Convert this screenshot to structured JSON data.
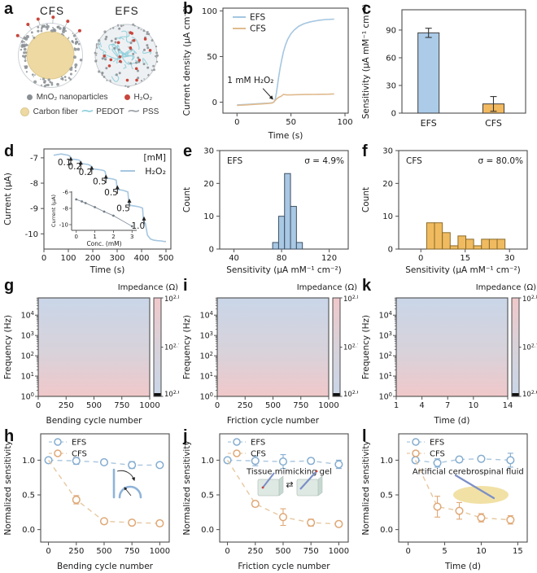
{
  "colors": {
    "efs_line": "#a5c6e0",
    "cfs_line": "#e0ba8e",
    "efs_marker": "#85add0",
    "cfs_marker": "#dfa876",
    "efs_dash": "#a9c6de",
    "cfs_dash": "#e6c8a0",
    "bar_blue": "#abcbe8",
    "bar_orange": "#f3b95f",
    "hist_blue": "#a8c8e4",
    "hist_orange": "#f0bb60",
    "edge": "#3f3f3f",
    "axis": "#4d4d4d",
    "text": "#1a1a1a",
    "heat_blue": "#c9d6e8",
    "heat_mid": "#d8d2da",
    "heat_pink": "#f0c8ca",
    "mno2": "#8a8f94",
    "h2o2": "#c8463c",
    "carbon": "#eed9a2",
    "pedot": "#8fcfdc",
    "pss": "#9aa0a6",
    "gel": "#dfe9e4",
    "needle": "#7b8fc7",
    "fluid": "#f0dfa0"
  },
  "panel_a": {
    "label": "a",
    "cfs_title": "CFS",
    "efs_title": "EFS",
    "legend": [
      {
        "name": "mno2-nanoparticles",
        "label": "MnO₂ nanoparticles"
      },
      {
        "name": "h2o2",
        "label": "H₂O₂"
      },
      {
        "name": "carbon-fiber",
        "label": "Carbon fiber"
      },
      {
        "name": "pedot",
        "label": "PEDOT",
        "glyph": "∼"
      },
      {
        "name": "pss",
        "label": "PSS",
        "glyph": "∼"
      }
    ]
  },
  "chart_data": [
    {
      "panel": "b",
      "type": "line",
      "xlabel": "Time (s)",
      "ylabel": "Current density (μA cm⁻²)",
      "xlim": [
        -13,
        103
      ],
      "ylim": [
        -12,
        103
      ],
      "xticks": [
        0,
        50,
        100
      ],
      "yticks": [
        0,
        50,
        100
      ],
      "series": [
        {
          "name": "EFS",
          "color": "#a5c6e0",
          "x": [
            0,
            6,
            12,
            18,
            24,
            30,
            33,
            34.5,
            35.5,
            36.5,
            37.5,
            38.5,
            40,
            41.5,
            43,
            45,
            47,
            50,
            53,
            57,
            62,
            68,
            75,
            82,
            90
          ],
          "y": [
            -3,
            -2.6,
            -2.2,
            -1.8,
            -1.4,
            -1,
            -0.6,
            0.5,
            4,
            10,
            18,
            27,
            38,
            47,
            55,
            63,
            69,
            75,
            79,
            83,
            86,
            88,
            89.5,
            90.5,
            91
          ]
        },
        {
          "name": "CFS",
          "color": "#e0ba8e",
          "x": [
            0,
            8,
            16,
            24,
            30,
            33,
            35,
            37,
            39,
            41,
            43,
            46,
            50,
            55,
            60,
            65,
            70,
            75,
            80,
            85,
            90
          ],
          "y": [
            -3.5,
            -3,
            -2.4,
            -1.8,
            -1.2,
            -0.8,
            1.5,
            4,
            5.5,
            6.5,
            8.5,
            8,
            8,
            8.2,
            8.3,
            8.4,
            8.5,
            8.6,
            8.7,
            8.8,
            9
          ]
        }
      ],
      "annotation": {
        "text": "1 mM H₂O₂",
        "text_xy": [
          -9,
          21
        ],
        "arrow_from": [
          24,
          15
        ],
        "arrow_to": [
          33,
          3.5
        ]
      }
    },
    {
      "panel": "c",
      "type": "bar",
      "ylabel": "Sensitivity (μA mM⁻¹ cm⁻²)",
      "categories": [
        "EFS",
        "CFS"
      ],
      "values": [
        87,
        10
      ],
      "errors": [
        5,
        8
      ],
      "bar_colors": [
        "#abcbe8",
        "#f3b95f"
      ],
      "ylim": [
        0,
        112
      ],
      "yticks": [
        0,
        30,
        60,
        90
      ]
    },
    {
      "panel": "d",
      "type": "line",
      "xlabel": "Time (s)",
      "ylabel": "Current (μA)",
      "xlim": [
        0,
        520
      ],
      "ylim": [
        -10.6,
        -6.65
      ],
      "xticks": [
        0,
        100,
        200,
        300,
        400,
        500
      ],
      "yticks": [
        -7,
        -8,
        -9,
        -10
      ],
      "legend_title": "[mM]",
      "series": [
        {
          "name": "H₂O₂",
          "color": "#a5c6e0",
          "x": [
            40,
            55,
            70,
            85,
            100,
            106,
            110,
            114,
            125,
            140,
            146,
            150,
            154,
            165,
            180,
            190,
            195,
            199,
            212,
            228,
            245,
            251,
            255,
            259,
            272,
            285,
            296,
            300,
            304,
            316,
            330,
            344,
            348,
            352,
            356,
            370,
            388,
            404,
            408,
            412,
            416,
            424,
            436,
            450,
            465,
            480,
            492,
            500
          ],
          "y": [
            -6.9,
            -6.87,
            -6.85,
            -6.87,
            -6.9,
            -6.93,
            -7.03,
            -7.05,
            -7.06,
            -7.08,
            -7.1,
            -7.2,
            -7.22,
            -7.24,
            -7.26,
            -7.3,
            -7.4,
            -7.43,
            -7.45,
            -7.47,
            -7.5,
            -7.55,
            -7.78,
            -7.8,
            -7.82,
            -7.84,
            -7.88,
            -8.22,
            -8.25,
            -8.27,
            -8.3,
            -8.35,
            -8.8,
            -8.85,
            -8.88,
            -8.9,
            -8.93,
            -8.98,
            -9.5,
            -9.55,
            -9.6,
            -10.05,
            -10.2,
            -10.25,
            -10.27,
            -10.28,
            -10.3,
            -10.3
          ]
        }
      ],
      "step_labels": [
        {
          "text": "0.1",
          "x": 110,
          "ytip": -6.99,
          "tx": 84,
          "ty": -7.3
        },
        {
          "text": "0.2",
          "x": 151,
          "ytip": -7.15,
          "tx": 126,
          "ty": -7.46
        },
        {
          "text": "0.2",
          "x": 196,
          "ytip": -7.35,
          "tx": 170,
          "ty": -7.68
        },
        {
          "text": "0.5",
          "x": 254,
          "ytip": -7.7,
          "tx": 228,
          "ty": -8.05
        },
        {
          "text": "0.5",
          "x": 301,
          "ytip": -8.12,
          "tx": 275,
          "ty": -8.48
        },
        {
          "text": "0.5",
          "x": 350,
          "ytip": -8.65,
          "tx": 325,
          "ty": -9.1
        },
        {
          "text": "1.0",
          "x": 410,
          "ytip": -9.35,
          "tx": 386,
          "ty": -9.8
        }
      ],
      "inset": {
        "xlabel": "Conc. (mM)",
        "ylabel": "Current (μA)",
        "xlim": [
          -0.25,
          3.25
        ],
        "ylim": [
          -10.7,
          -5.9
        ],
        "xticks": [
          0,
          1,
          2,
          3
        ],
        "yticks": [
          -6,
          -8,
          -10
        ],
        "x": [
          0,
          0.3,
          0.5,
          1,
          1.5,
          2,
          3
        ],
        "y": [
          -6.9,
          -7.15,
          -7.35,
          -7.85,
          -8.4,
          -8.9,
          -10.2
        ]
      }
    },
    {
      "panel": "e",
      "type": "histogram",
      "xlabel": "Sensitivity (μA mM⁻¹ cm⁻²)",
      "ylabel": "Count",
      "xlim": [
        28,
        136
      ],
      "ylim": [
        0,
        30
      ],
      "xticks": [
        40,
        80,
        120
      ],
      "yticks": [
        0,
        10,
        20,
        30
      ],
      "bin_width": 5,
      "bin_centers": [
        75,
        80,
        85,
        90,
        95
      ],
      "counts": [
        2,
        10,
        23,
        13,
        2
      ],
      "fill": "#a8c8e4",
      "edge": "#3f4f63",
      "corner_label": "EFS",
      "sigma_label": "σ = 4.9%"
    },
    {
      "panel": "f",
      "type": "histogram",
      "xlabel": "Sensitivity (μA mM⁻¹ cm⁻²)",
      "ylabel": "Count",
      "xlim": [
        -7.5,
        36
      ],
      "ylim": [
        0,
        30
      ],
      "xticks": [
        0,
        15,
        30
      ],
      "yticks": [
        0,
        10,
        20,
        30
      ],
      "bin_width": 2.65,
      "bin_centers": [
        3.3,
        5.95,
        8.6,
        11.25,
        13.9,
        16.55,
        19.2,
        21.85,
        24.5,
        27.15
      ],
      "counts": [
        8,
        8,
        5,
        1,
        4,
        3,
        1,
        3,
        3,
        3
      ],
      "fill": "#f0bb60",
      "edge": "#8a6a2a",
      "corner_label": "CFS",
      "sigma_label": "σ = 80.0%"
    },
    {
      "panel": "g",
      "type": "heatmap",
      "xlabel": "Bending cycle number",
      "ylabel": "Frequency (Hz)",
      "xlim": [
        0,
        1000
      ],
      "xticks": [
        0,
        250,
        500,
        750,
        1000
      ],
      "ytick_exps": [
        0,
        1,
        2,
        3,
        4
      ],
      "ymax_exp": 4.85,
      "colorbar": {
        "title": "Impedance (Ω)",
        "tick_labels": [
          "10^2.8",
          "10^2.7",
          "10^2.6"
        ]
      },
      "top_color": "#c9d6e8",
      "bottom_color": "#f0c8ca"
    },
    {
      "panel": "i",
      "type": "heatmap",
      "xlabel": "Friction cycle number",
      "ylabel": "Frequency (Hz)",
      "xlim": [
        0,
        1000
      ],
      "xticks": [
        0,
        250,
        500,
        750,
        1000
      ],
      "ytick_exps": [
        0,
        1,
        2,
        3,
        4
      ],
      "ymax_exp": 4.85,
      "colorbar": {
        "title": "Impedance (Ω)",
        "tick_labels": [
          "10^2.8",
          "10^2.7",
          "10^2.6"
        ]
      },
      "top_color": "#c9d6e8",
      "bottom_color": "#f0c8ca"
    },
    {
      "panel": "k",
      "type": "heatmap",
      "xlabel": "Time (d)",
      "ylabel": "Frequency (Hz)",
      "xlim": [
        1,
        14
      ],
      "xticks": [
        1,
        4,
        7,
        10,
        14
      ],
      "ytick_exps": [
        0,
        1,
        2,
        3,
        4
      ],
      "ymax_exp": 4.85,
      "colorbar": {
        "title": "Impedance (Ω)",
        "tick_labels": [
          "10^2.8",
          "10^2.7",
          "10^2.6"
        ]
      },
      "top_color": "#c9d6e8",
      "bottom_color": "#f0c8ca"
    },
    {
      "panel": "h",
      "type": "scatterline",
      "xlabel": "Bending cycle number",
      "ylabel": "Normalized sensitivity",
      "xlim": [
        -70,
        1085
      ],
      "ylim": [
        -0.18,
        1.38
      ],
      "xticks": [
        0,
        250,
        500,
        750,
        1000
      ],
      "yticks": [
        0,
        0.5,
        1
      ],
      "ytick_labels": [
        "0.0",
        "0.5",
        "1.0"
      ],
      "series": [
        {
          "name": "EFS",
          "marker": "#85add0",
          "dash": "#a9c6de",
          "x": [
            0,
            250,
            500,
            750,
            1000
          ],
          "y": [
            1.0,
            0.99,
            0.97,
            0.93,
            0.93
          ],
          "yerr": [
            0.02,
            0.05,
            0.03,
            0.05,
            0.03
          ]
        },
        {
          "name": "CFS",
          "marker": "#dfa876",
          "dash": "#e6c8a0",
          "skip_first_marker": true,
          "x": [
            0,
            250,
            500,
            750,
            1000
          ],
          "y": [
            1.0,
            0.43,
            0.12,
            0.1,
            0.09
          ],
          "yerr": [
            0,
            0.06,
            0.03,
            0.03,
            0.04
          ]
        }
      ],
      "inset_icon": "bending"
    },
    {
      "panel": "j",
      "type": "scatterline",
      "xlabel": "Friction cycle number",
      "ylabel": "Normalized sensitivity",
      "xlim": [
        -70,
        1085
      ],
      "ylim": [
        -0.18,
        1.38
      ],
      "xticks": [
        0,
        250,
        500,
        750,
        1000
      ],
      "yticks": [
        0,
        0.5,
        1
      ],
      "ytick_labels": [
        "0.0",
        "0.5",
        "1.0"
      ],
      "series": [
        {
          "name": "EFS",
          "marker": "#85add0",
          "dash": "#a9c6de",
          "x": [
            0,
            250,
            500,
            750,
            1000
          ],
          "y": [
            1.0,
            0.99,
            0.98,
            0.99,
            0.94
          ],
          "yerr": [
            0.02,
            0.07,
            0.1,
            0.04,
            0.06
          ]
        },
        {
          "name": "CFS",
          "marker": "#dfa876",
          "dash": "#e6c8a0",
          "skip_first_marker": true,
          "x": [
            0,
            250,
            500,
            750,
            1000
          ],
          "y": [
            1.0,
            0.37,
            0.18,
            0.1,
            0.08
          ],
          "yerr": [
            0,
            0.04,
            0.12,
            0.05,
            0.04
          ]
        }
      ],
      "annotation": {
        "text": "Tissue mimicking gel",
        "x": 555,
        "y": 0.8
      },
      "inset_icon": "friction-gel"
    },
    {
      "panel": "l",
      "type": "scatterline",
      "xlabel": "Time (d)",
      "ylabel": "Normalized sensitivity",
      "xlim": [
        -1.3,
        16.3
      ],
      "ylim": [
        -0.18,
        1.38
      ],
      "xticks": [
        0,
        5,
        10,
        15
      ],
      "yticks": [
        0,
        0.5,
        1
      ],
      "ytick_labels": [
        "0.0",
        "0.5",
        "1.0"
      ],
      "series": [
        {
          "name": "EFS",
          "marker": "#85add0",
          "dash": "#a9c6de",
          "x": [
            1,
            4,
            7,
            10,
            14
          ],
          "y": [
            1.0,
            0.96,
            1.01,
            1.02,
            1.0
          ],
          "yerr": [
            0.03,
            0.06,
            0.04,
            0.04,
            0.1
          ]
        },
        {
          "name": "CFS",
          "marker": "#dfa876",
          "dash": "#e6c8a0",
          "skip_first_marker": true,
          "x": [
            1,
            4,
            7,
            10,
            14
          ],
          "y": [
            1.0,
            0.33,
            0.27,
            0.17,
            0.14
          ],
          "yerr": [
            0,
            0.15,
            0.12,
            0.06,
            0.06
          ]
        }
      ],
      "annotation": {
        "text": "Artificial cerebrospinal fluid",
        "x": 8.2,
        "y": 0.8
      },
      "inset_icon": "csf"
    }
  ]
}
